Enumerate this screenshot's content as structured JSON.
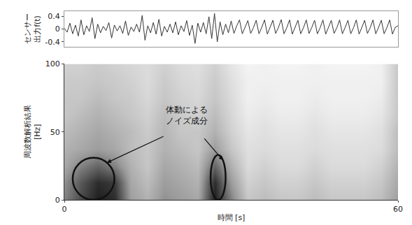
{
  "chart_data": [
    {
      "type": "line",
      "ylabel": "センサー\n出力f(t)",
      "x": [
        0,
        0.5,
        1,
        1.5,
        2,
        2.5,
        3,
        3.5,
        4,
        4.5,
        5,
        5.5,
        6,
        6.5,
        7,
        7.5,
        8,
        8.5,
        9,
        9.5,
        10,
        10.5,
        11,
        11.5,
        12,
        12.5,
        13,
        13.5,
        14,
        14.5,
        15,
        15.5,
        16,
        16.5,
        17,
        17.5,
        18,
        18.5,
        19,
        19.5,
        20,
        20.5,
        21,
        21.5,
        22,
        22.5,
        23,
        23.5,
        24,
        24.5,
        25,
        25.5,
        26,
        26.5,
        27,
        27.5,
        28,
        28.5,
        29,
        29.5,
        30,
        30.5,
        31,
        31.5,
        32,
        32.5,
        33,
        33.5,
        34,
        34.5,
        35,
        35.5,
        36,
        36.5,
        37,
        37.5,
        38,
        38.5,
        39,
        39.5,
        40,
        40.5,
        41,
        41.5,
        42,
        42.5,
        43,
        43.5,
        44,
        44.5,
        45,
        45.5,
        46,
        46.5,
        47,
        47.5,
        48,
        48.5,
        49,
        49.5,
        50,
        50.5,
        51,
        51.5,
        52,
        52.5,
        53,
        53.5,
        54,
        54.5,
        55,
        55.5,
        56,
        56.5,
        57,
        57.5,
        58,
        58.5,
        59,
        59.5,
        60
      ],
      "values": [
        0.02,
        -0.1,
        0.18,
        -0.15,
        0.12,
        -0.22,
        0.28,
        -0.18,
        0.1,
        -0.08,
        0.35,
        -0.3,
        0.15,
        -0.12,
        0.08,
        -0.05,
        0.2,
        -0.28,
        0.12,
        -0.06,
        0.1,
        -0.14,
        0.25,
        -0.2,
        0.06,
        -0.08,
        0.15,
        -0.1,
        0.42,
        -0.35,
        0.1,
        -0.12,
        0.2,
        -0.16,
        0.3,
        -0.22,
        0.08,
        -0.1,
        0.15,
        -0.12,
        0.22,
        -0.18,
        0.1,
        -0.08,
        0.26,
        -0.2,
        0.12,
        -0.45,
        0.18,
        -0.1,
        0.2,
        -0.15,
        0.38,
        -0.3,
        0.48,
        -0.4,
        0.22,
        -0.18,
        0.15,
        -0.12,
        0.25,
        -0.14,
        0.1,
        0.28,
        -0.15,
        0.05,
        0.26,
        -0.14,
        0.04,
        0.27,
        -0.15,
        0.05,
        0.28,
        -0.16,
        0.04,
        0.27,
        -0.14,
        0.05,
        0.29,
        -0.15,
        0.04,
        0.28,
        -0.16,
        0.05,
        0.27,
        -0.15,
        0.04,
        0.28,
        -0.14,
        0.05,
        0.27,
        -0.15,
        0.04,
        0.28,
        -0.16,
        0.05,
        0.27,
        -0.14,
        0.04,
        0.28,
        -0.15,
        0.05,
        0.27,
        -0.15,
        0.04,
        0.28,
        -0.16,
        0.05,
        0.27,
        -0.14,
        0.04,
        0.28,
        -0.15,
        0.05,
        0.27,
        -0.15,
        0.04,
        0.28,
        -0.16,
        0.05,
        0.1
      ],
      "color": "#333333",
      "xlim": [
        0,
        60
      ],
      "ylim": [
        -0.55,
        0.55
      ],
      "yticks": [
        0.4,
        0,
        -0.4
      ],
      "tick_labels": "y"
    },
    {
      "type": "heatmap",
      "xlabel": "時間 [s]",
      "ylabel": "周波数解析結果\n[Hz]",
      "x": [
        0,
        3,
        6,
        9,
        12,
        15,
        18,
        21,
        24,
        27,
        30,
        33,
        36,
        39,
        42,
        45,
        48,
        51,
        54,
        57,
        60
      ],
      "y": [
        0,
        12.5,
        25,
        37.5,
        50,
        62.5,
        75,
        87.5,
        100
      ],
      "z": [
        [
          0.6,
          0.8,
          0.95,
          0.9,
          0.5,
          0.4,
          0.55,
          0.5,
          0.45,
          0.95,
          0.6,
          0.3,
          0.35,
          0.3,
          0.3,
          0.35,
          0.3,
          0.3,
          0.3,
          0.35,
          0.5
        ],
        [
          0.55,
          0.75,
          0.9,
          0.85,
          0.45,
          0.35,
          0.5,
          0.45,
          0.4,
          0.9,
          0.5,
          0.25,
          0.3,
          0.25,
          0.25,
          0.3,
          0.25,
          0.25,
          0.25,
          0.3,
          0.45
        ],
        [
          0.45,
          0.6,
          0.7,
          0.6,
          0.4,
          0.3,
          0.45,
          0.4,
          0.35,
          0.7,
          0.4,
          0.2,
          0.25,
          0.2,
          0.2,
          0.25,
          0.2,
          0.2,
          0.2,
          0.25,
          0.4
        ],
        [
          0.4,
          0.45,
          0.5,
          0.45,
          0.35,
          0.3,
          0.4,
          0.35,
          0.3,
          0.5,
          0.3,
          0.18,
          0.2,
          0.18,
          0.18,
          0.2,
          0.18,
          0.18,
          0.18,
          0.2,
          0.35
        ],
        [
          0.35,
          0.4,
          0.45,
          0.4,
          0.35,
          0.28,
          0.38,
          0.3,
          0.3,
          0.4,
          0.25,
          0.15,
          0.18,
          0.15,
          0.15,
          0.18,
          0.15,
          0.15,
          0.15,
          0.18,
          0.35
        ],
        [
          0.3,
          0.35,
          0.4,
          0.35,
          0.3,
          0.25,
          0.35,
          0.28,
          0.25,
          0.35,
          0.22,
          0.12,
          0.15,
          0.12,
          0.12,
          0.15,
          0.12,
          0.12,
          0.12,
          0.15,
          0.3
        ],
        [
          0.3,
          0.3,
          0.35,
          0.3,
          0.28,
          0.22,
          0.3,
          0.25,
          0.22,
          0.3,
          0.2,
          0.1,
          0.12,
          0.1,
          0.1,
          0.12,
          0.1,
          0.1,
          0.1,
          0.12,
          0.3
        ],
        [
          0.28,
          0.28,
          0.3,
          0.28,
          0.25,
          0.2,
          0.28,
          0.22,
          0.2,
          0.28,
          0.18,
          0.1,
          0.1,
          0.1,
          0.1,
          0.1,
          0.1,
          0.1,
          0.1,
          0.1,
          0.3
        ],
        [
          0.25,
          0.25,
          0.28,
          0.25,
          0.22,
          0.2,
          0.25,
          0.2,
          0.18,
          0.25,
          0.15,
          0.08,
          0.1,
          0.08,
          0.08,
          0.1,
          0.08,
          0.08,
          0.08,
          0.1,
          0.3
        ]
      ],
      "xlim": [
        0,
        60
      ],
      "ylim": [
        0,
        100
      ],
      "xticks": [
        0,
        60
      ],
      "yticks": [
        0,
        50,
        100
      ],
      "annotations": [
        {
          "text": "体動による\nノイズ成分",
          "regions": [
            {
              "x0": 1.5,
              "x1": 9,
              "y0": 0,
              "y1": 31
            },
            {
              "x0": 26.3,
              "x1": 29,
              "y0": 0,
              "y1": 33
            }
          ]
        }
      ]
    }
  ]
}
